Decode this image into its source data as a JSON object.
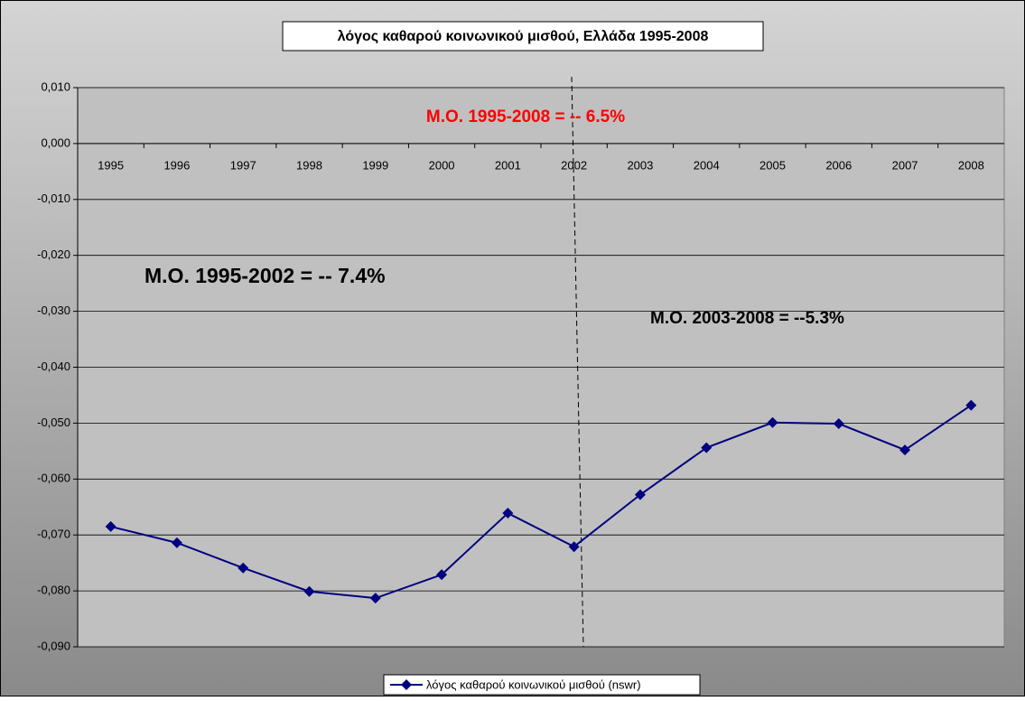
{
  "chart_data": {
    "type": "line",
    "title": "λόγος καθαρού κοινωνικού μισθού, Ελλάδα 1995-2008",
    "categories": [
      "1995",
      "1996",
      "1997",
      "1998",
      "1999",
      "2000",
      "2001",
      "2002",
      "2003",
      "2004",
      "2005",
      "2006",
      "2007",
      "2008"
    ],
    "series": [
      {
        "name": "λόγος καθαρού κοινωνικού μισθού (nswr)",
        "color": "#000080",
        "values": [
          -0.0685,
          -0.0714,
          -0.0759,
          -0.0801,
          -0.0813,
          -0.0771,
          -0.0661,
          -0.0721,
          -0.0628,
          -0.0544,
          -0.0499,
          -0.0501,
          -0.0548,
          -0.0468
        ]
      }
    ],
    "ylim": [
      -0.09,
      0.01
    ],
    "yticks": [
      {
        "value": 0.01,
        "label": "0,010"
      },
      {
        "value": 0,
        "label": "0,000"
      },
      {
        "value": -0.01,
        "label": "-0,010"
      },
      {
        "value": -0.02,
        "label": "-0,020"
      },
      {
        "value": -0.03,
        "label": "-0,030"
      },
      {
        "value": -0.04,
        "label": "-0,040"
      },
      {
        "value": -0.05,
        "label": "-0,050"
      },
      {
        "value": -0.06,
        "label": "-0,060"
      },
      {
        "value": -0.07,
        "label": "-0,070"
      },
      {
        "value": -0.08,
        "label": "-0,080"
      },
      {
        "value": -0.09,
        "label": "-0,090"
      }
    ],
    "grid": true,
    "legend": "bottom",
    "annotations": [
      "Μ.Ο. 1995-2008 = -- 6.5%",
      "Μ.Ο. 1995-2002 = -- 7.4%",
      "Μ.Ο. 2003-2008 = --5.3%"
    ]
  }
}
